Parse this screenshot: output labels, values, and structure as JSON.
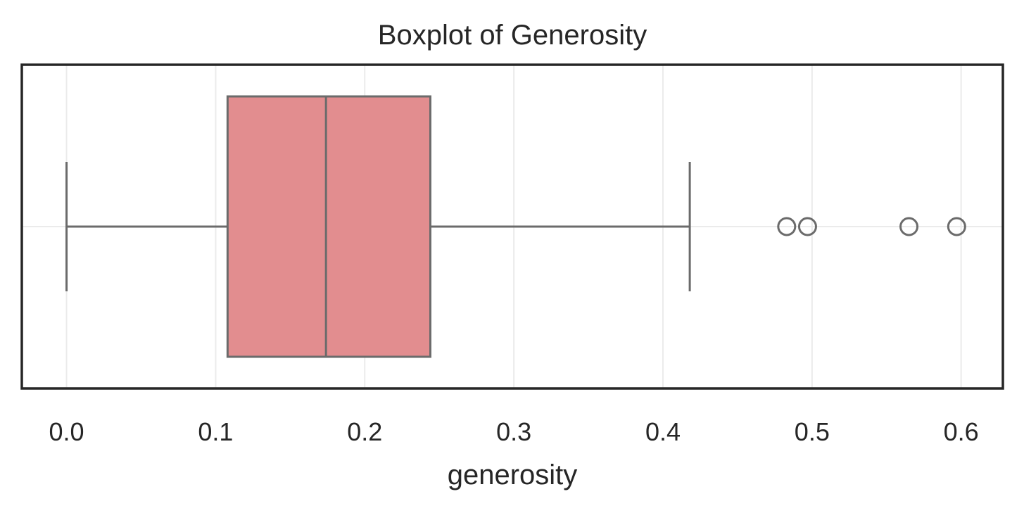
{
  "chart_data": {
    "type": "boxplot",
    "title": "Boxplot of Generosity",
    "xlabel": "generosity",
    "ylabel": "",
    "orientation": "horizontal",
    "xlim": [
      -0.03,
      0.628
    ],
    "xticks": [
      0.0,
      0.1,
      0.2,
      0.3,
      0.4,
      0.5,
      0.6
    ],
    "xtick_labels": [
      "0.0",
      "0.1",
      "0.2",
      "0.3",
      "0.4",
      "0.5",
      "0.6"
    ],
    "grid": true,
    "legend": "none",
    "box": {
      "whisker_low": 0.0,
      "q1": 0.108,
      "median": 0.174,
      "q3": 0.244,
      "whisker_high": 0.418
    },
    "outliers": [
      0.483,
      0.497,
      0.565,
      0.597
    ],
    "colors": {
      "box_fill": "#e28d8f",
      "box_edge": "#6b6b6b",
      "frame": "#262626",
      "grid": "#ebebeb",
      "text": "#262626"
    }
  }
}
